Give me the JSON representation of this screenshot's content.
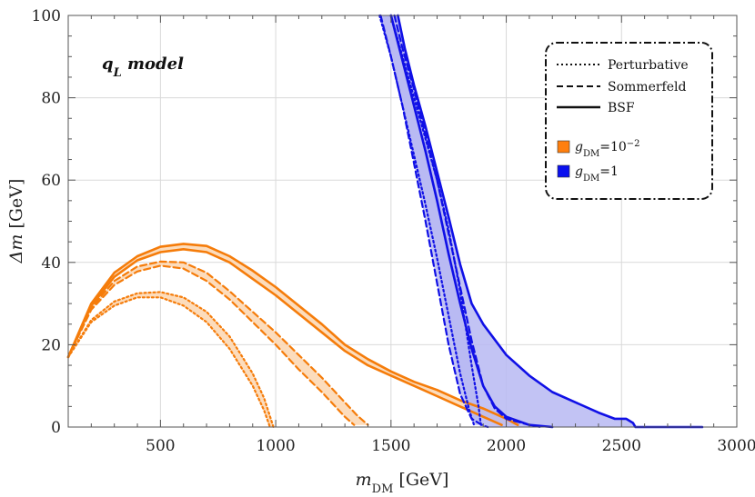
{
  "chart_data": {
    "type": "line",
    "title": "",
    "annotation": "q_L model",
    "annotation_main": "q",
    "annotation_sub": "L",
    "annotation_rest": " model",
    "xlabel": "m_DM [GeV]",
    "xlabel_main": "m",
    "xlabel_sub": "DM",
    "xlabel_unit": " [GeV]",
    "ylabel": "Δm [GeV]",
    "ylabel_main": "Δm",
    "ylabel_unit": " [GeV]",
    "xlim": [
      100,
      3000
    ],
    "ylim": [
      0,
      100
    ],
    "xticks": [
      500,
      1000,
      1500,
      2000,
      2500,
      3000
    ],
    "yticks": [
      0,
      20,
      40,
      60,
      80,
      100
    ],
    "grid": true,
    "legend_position": "top-right",
    "legend_styles": [
      {
        "label": "Perturbative",
        "dash": "dotted"
      },
      {
        "label": "Sommerfeld",
        "dash": "dashed"
      },
      {
        "label": "BSF",
        "dash": "solid"
      }
    ],
    "legend_couplings": [
      {
        "label": "g_DM=10^-2",
        "main": "g",
        "sub": "DM",
        "rest": "=10",
        "sup": "−2",
        "color": "#ff7f0e"
      },
      {
        "label": "g_DM=1",
        "main": "g",
        "sub": "DM",
        "rest": "=1",
        "sup": "",
        "color": "#0a10ee"
      }
    ],
    "colors": {
      "orange": "#f57c0a",
      "blue": "#1010e6",
      "orange_fill": "#fbd6b0",
      "blue_fill": "#b7b9f2"
    },
    "series": [
      {
        "coupling": "g_DM=10^-2",
        "style": "Perturbative",
        "upper": [
          [
            100,
            17
          ],
          [
            200,
            26
          ],
          [
            300,
            30.5
          ],
          [
            400,
            32.5
          ],
          [
            500,
            32.8
          ],
          [
            600,
            31.5
          ],
          [
            700,
            28
          ],
          [
            800,
            22
          ],
          [
            900,
            13
          ],
          [
            950,
            7
          ],
          [
            990,
            0
          ]
        ],
        "lower": [
          [
            100,
            17
          ],
          [
            200,
            25.5
          ],
          [
            300,
            29.5
          ],
          [
            400,
            31.5
          ],
          [
            500,
            31.5
          ],
          [
            600,
            29.5
          ],
          [
            700,
            25.5
          ],
          [
            800,
            19
          ],
          [
            900,
            10
          ],
          [
            950,
            4
          ],
          [
            975,
            0
          ]
        ]
      },
      {
        "coupling": "g_DM=10^-2",
        "style": "Sommerfeld",
        "upper": [
          [
            100,
            17
          ],
          [
            200,
            29
          ],
          [
            300,
            35.5
          ],
          [
            400,
            39
          ],
          [
            500,
            40.2
          ],
          [
            600,
            40
          ],
          [
            700,
            37.5
          ],
          [
            800,
            33
          ],
          [
            900,
            28
          ],
          [
            1000,
            23
          ],
          [
            1100,
            17.5
          ],
          [
            1200,
            12
          ],
          [
            1300,
            6
          ],
          [
            1350,
            3
          ],
          [
            1400,
            0.5
          ]
        ],
        "lower": [
          [
            100,
            17
          ],
          [
            200,
            28.5
          ],
          [
            300,
            34.5
          ],
          [
            400,
            37.8
          ],
          [
            500,
            39.2
          ],
          [
            600,
            38.5
          ],
          [
            700,
            35.5
          ],
          [
            800,
            31
          ],
          [
            900,
            25.5
          ],
          [
            1000,
            20
          ],
          [
            1100,
            14
          ],
          [
            1200,
            8.5
          ],
          [
            1300,
            2.5
          ],
          [
            1340,
            0.5
          ]
        ]
      },
      {
        "coupling": "g_DM=10^-2",
        "style": "BSF",
        "upper": [
          [
            100,
            17
          ],
          [
            200,
            30
          ],
          [
            300,
            37.5
          ],
          [
            400,
            41.5
          ],
          [
            500,
            43.8
          ],
          [
            600,
            44.5
          ],
          [
            700,
            44
          ],
          [
            800,
            41.5
          ],
          [
            900,
            38
          ],
          [
            1000,
            34
          ],
          [
            1100,
            29.5
          ],
          [
            1200,
            25
          ],
          [
            1300,
            20
          ],
          [
            1400,
            16.5
          ],
          [
            1500,
            13.5
          ],
          [
            1600,
            11
          ],
          [
            1700,
            9
          ],
          [
            1800,
            6.5
          ],
          [
            1900,
            4.5
          ],
          [
            2000,
            2
          ],
          [
            2050,
            0.5
          ]
        ],
        "lower": [
          [
            100,
            17
          ],
          [
            200,
            29.5
          ],
          [
            300,
            36.5
          ],
          [
            400,
            40.5
          ],
          [
            500,
            42.5
          ],
          [
            600,
            43.2
          ],
          [
            700,
            42.5
          ],
          [
            800,
            40
          ],
          [
            900,
            36
          ],
          [
            1000,
            32
          ],
          [
            1100,
            27.5
          ],
          [
            1200,
            23
          ],
          [
            1300,
            18.5
          ],
          [
            1400,
            15
          ],
          [
            1500,
            12.5
          ],
          [
            1600,
            10
          ],
          [
            1700,
            7.5
          ],
          [
            1800,
            5
          ],
          [
            1900,
            2.5
          ],
          [
            1980,
            0.5
          ]
        ]
      },
      {
        "coupling": "g_DM=1",
        "style": "Perturbative",
        "upper": [
          [
            1500,
            100
          ],
          [
            1550,
            90
          ],
          [
            1600,
            80
          ],
          [
            1650,
            70
          ],
          [
            1700,
            60
          ],
          [
            1750,
            48
          ],
          [
            1800,
            33
          ],
          [
            1850,
            15
          ],
          [
            1880,
            5
          ],
          [
            1890,
            0.5
          ]
        ],
        "lower": [
          [
            1450,
            100
          ],
          [
            1500,
            90
          ],
          [
            1550,
            78
          ],
          [
            1600,
            66
          ],
          [
            1650,
            54
          ],
          [
            1700,
            41
          ],
          [
            1750,
            27
          ],
          [
            1800,
            13
          ],
          [
            1840,
            4
          ],
          [
            1860,
            0.5
          ]
        ]
      },
      {
        "coupling": "g_DM=1",
        "style": "Sommerfeld",
        "upper": [
          [
            1515,
            100
          ],
          [
            1550,
            92
          ],
          [
            1600,
            82
          ],
          [
            1650,
            71
          ],
          [
            1700,
            60
          ],
          [
            1750,
            47
          ],
          [
            1800,
            34
          ],
          [
            1850,
            21
          ],
          [
            1900,
            10
          ],
          [
            1950,
            4.5
          ],
          [
            2000,
            2
          ],
          [
            2100,
            0.5
          ],
          [
            2150,
            0
          ]
        ],
        "lower": [
          [
            1455,
            100
          ],
          [
            1500,
            90
          ],
          [
            1550,
            78
          ],
          [
            1600,
            64
          ],
          [
            1650,
            50
          ],
          [
            1700,
            35
          ],
          [
            1750,
            20
          ],
          [
            1800,
            8
          ],
          [
            1850,
            2
          ],
          [
            1900,
            0.3
          ],
          [
            1920,
            0
          ]
        ]
      },
      {
        "coupling": "g_DM=1",
        "style": "BSF",
        "upper": [
          [
            1530,
            100
          ],
          [
            1560,
            92
          ],
          [
            1600,
            83
          ],
          [
            1650,
            73
          ],
          [
            1700,
            62
          ],
          [
            1750,
            51
          ],
          [
            1800,
            39.5
          ],
          [
            1850,
            30
          ],
          [
            1900,
            25
          ],
          [
            2000,
            17.5
          ],
          [
            2100,
            12.5
          ],
          [
            2200,
            8.5
          ],
          [
            2300,
            6
          ],
          [
            2400,
            3.5
          ],
          [
            2470,
            2
          ],
          [
            2520,
            2
          ],
          [
            2550,
            1
          ],
          [
            2560,
            0
          ],
          [
            2850,
            0
          ]
        ],
        "lower": [
          [
            1500,
            100
          ],
          [
            1550,
            89
          ],
          [
            1600,
            78
          ],
          [
            1650,
            67
          ],
          [
            1700,
            55
          ],
          [
            1750,
            42
          ],
          [
            1800,
            30
          ],
          [
            1850,
            19
          ],
          [
            1900,
            10
          ],
          [
            1950,
            5
          ],
          [
            2000,
            2.5
          ],
          [
            2100,
            0.5
          ],
          [
            2200,
            0
          ]
        ]
      }
    ]
  }
}
